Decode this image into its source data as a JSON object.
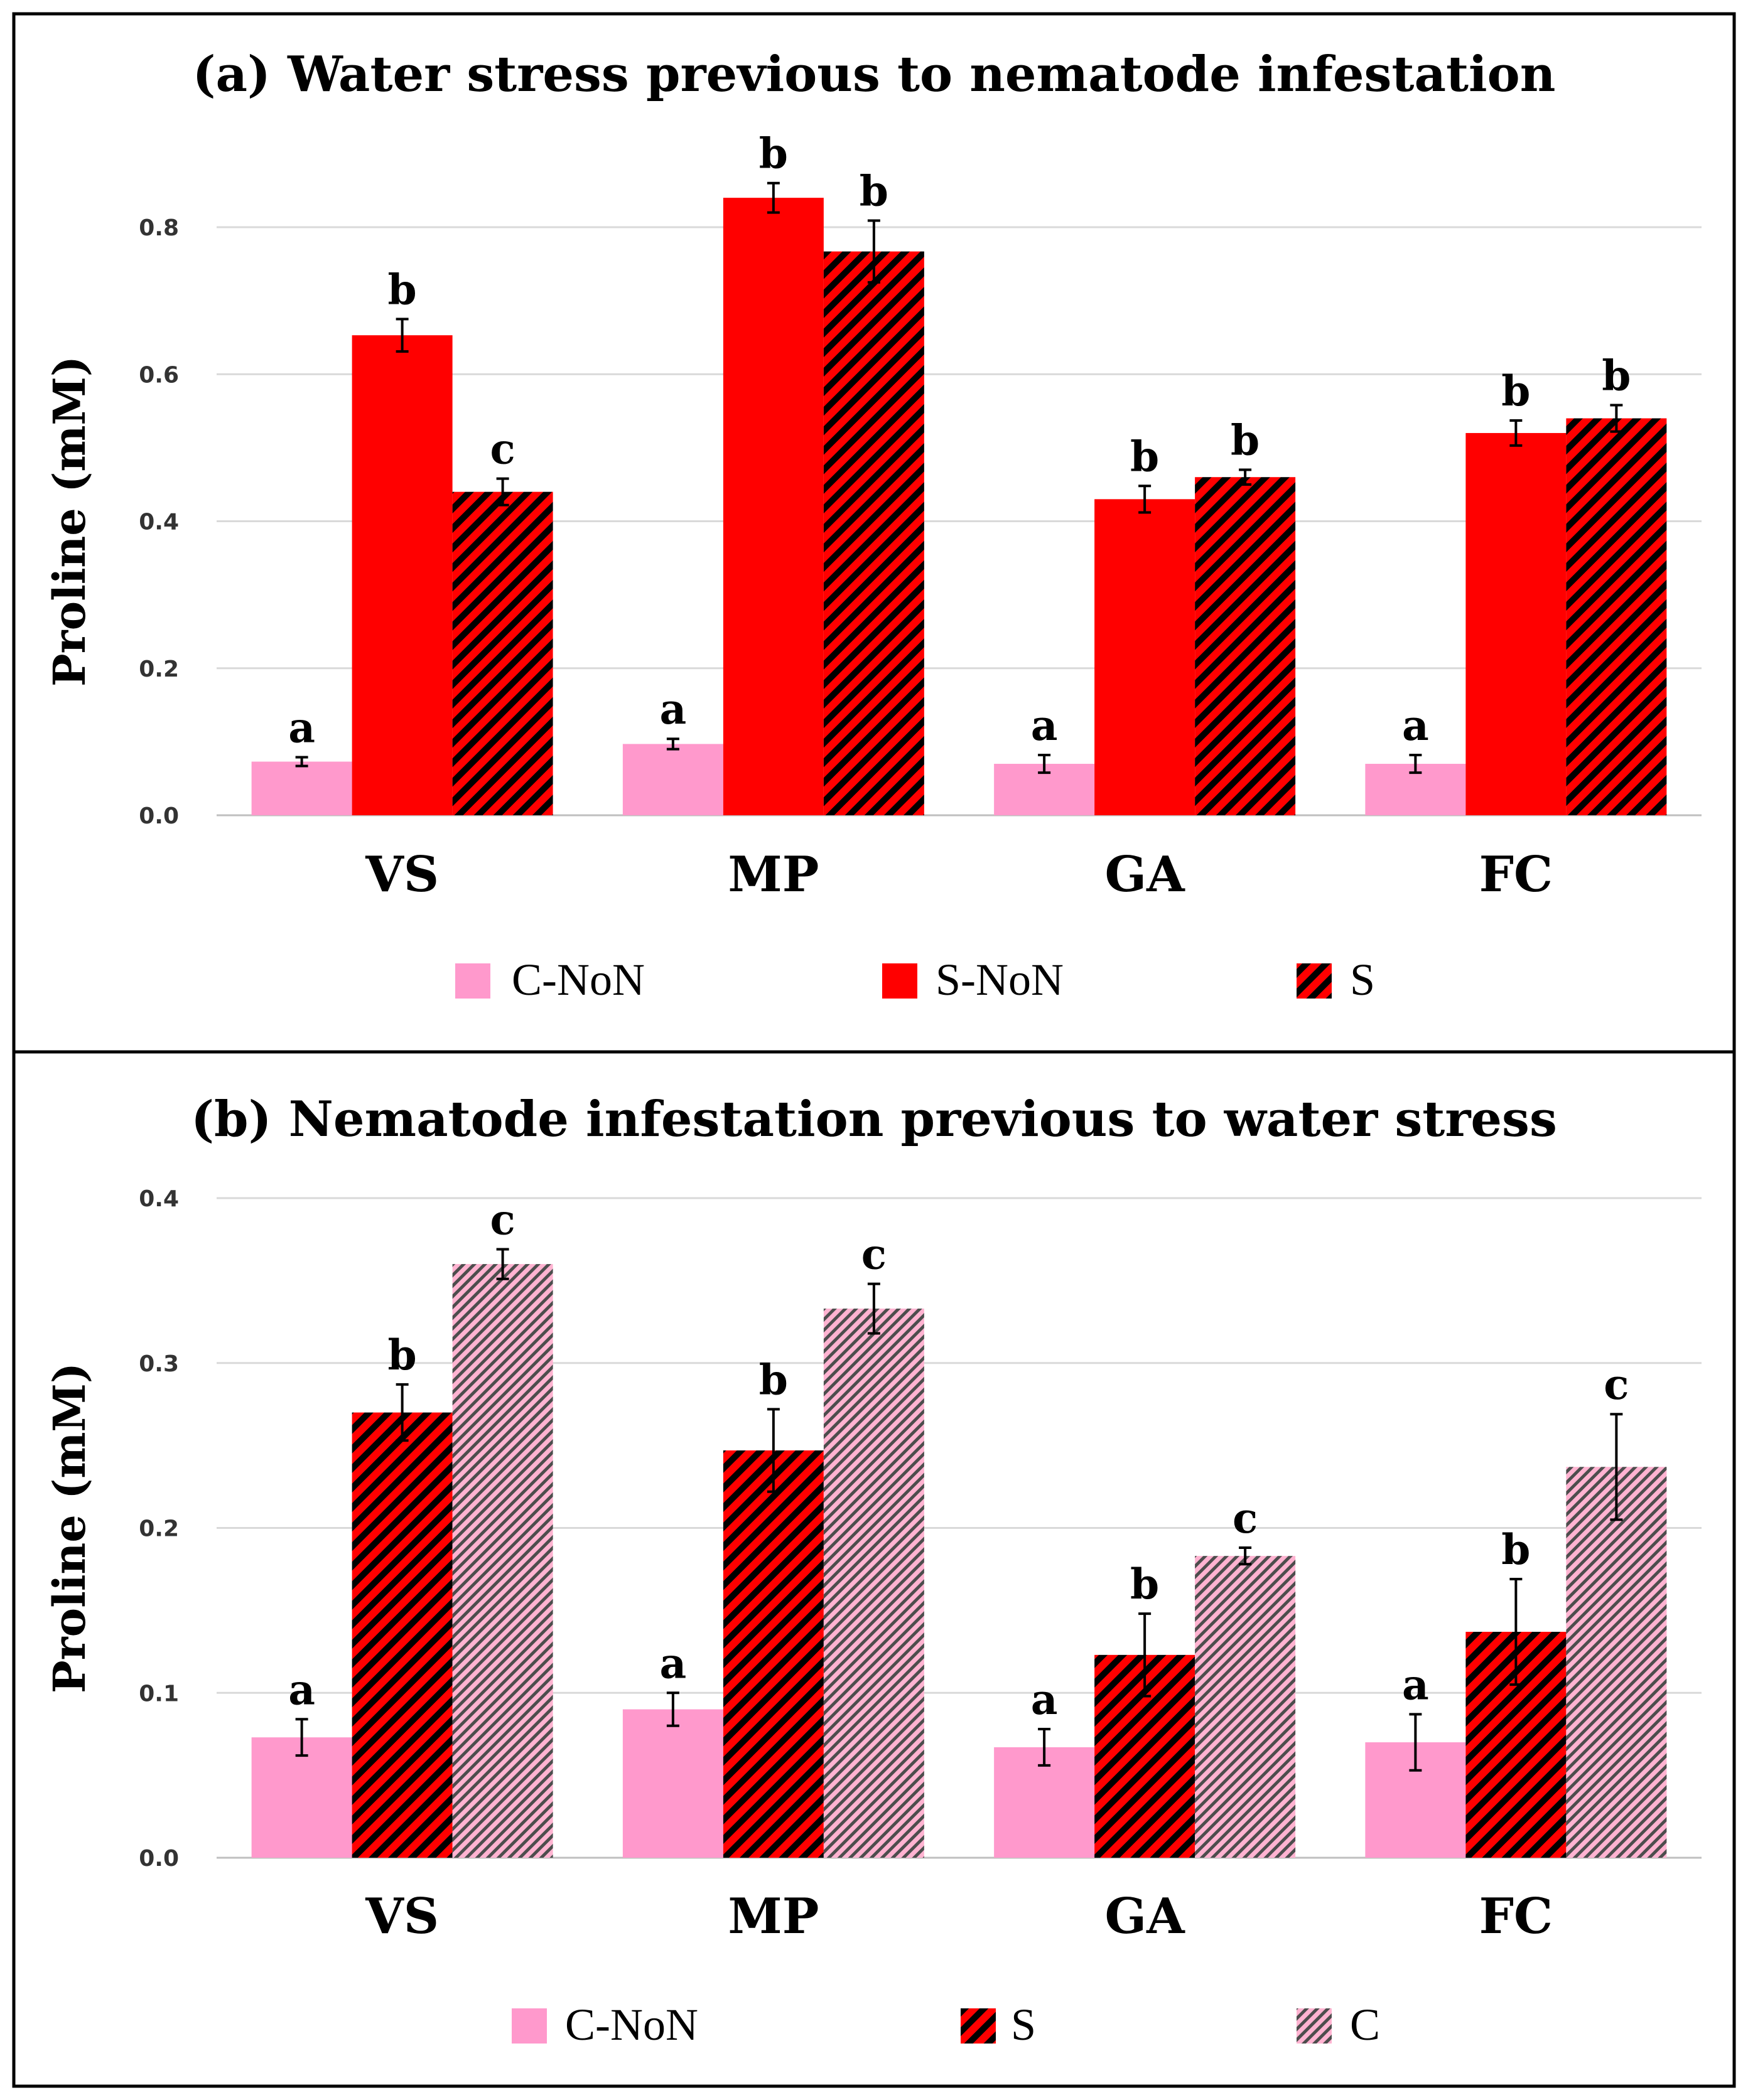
{
  "colors": {
    "c_non": "#ff99cc",
    "red": "#ff0000",
    "hatch_dark": "#000000",
    "pink_hatch_bg": "#ffb3d1",
    "pink_hatch_line": "#4d4d4d"
  },
  "chart_data": [
    {
      "id": "a",
      "type": "bar",
      "title": "(a) Water stress previous to nematode infestation",
      "ylabel": "Proline (mM)",
      "xlabel": "",
      "ylim": [
        0,
        0.8
      ],
      "yticks": [
        "0.0",
        "0.2",
        "0.4",
        "0.6",
        "0.8"
      ],
      "grid": true,
      "legend_position": "bottom",
      "categories": [
        "VS",
        "MP",
        "GA",
        "FC"
      ],
      "series": [
        {
          "name": "C-NoN",
          "fill": "solid-pink",
          "values": [
            0.073,
            0.097,
            0.07,
            0.07
          ],
          "errors": [
            0.006,
            0.007,
            0.012,
            0.012
          ],
          "labels": [
            "a",
            "a",
            "a",
            "a"
          ]
        },
        {
          "name": "S-NoN",
          "fill": "solid-red",
          "values": [
            0.653,
            0.84,
            0.43,
            0.52
          ],
          "errors": [
            0.022,
            0.02,
            0.018,
            0.017
          ],
          "labels": [
            "b",
            "b",
            "b",
            "b"
          ]
        },
        {
          "name": "S",
          "fill": "hatch-red",
          "values": [
            0.44,
            0.767,
            0.46,
            0.54
          ],
          "errors": [
            0.018,
            0.042,
            0.01,
            0.018
          ],
          "labels": [
            "c",
            "b",
            "b",
            "b"
          ]
        }
      ]
    },
    {
      "id": "b",
      "type": "bar",
      "title": "(b) Nematode infestation previous to water stress",
      "ylabel": "Proline (mM)",
      "xlabel": "",
      "ylim": [
        0,
        0.4
      ],
      "yticks": [
        "0.0",
        "0.1",
        "0.2",
        "0.3",
        "0.4"
      ],
      "grid": true,
      "legend_position": "bottom",
      "categories": [
        "VS",
        "MP",
        "GA",
        "FC"
      ],
      "series": [
        {
          "name": "C-NoN",
          "fill": "solid-pink",
          "values": [
            0.073,
            0.09,
            0.067,
            0.07
          ],
          "errors": [
            0.011,
            0.01,
            0.011,
            0.017
          ],
          "labels": [
            "a",
            "a",
            "a",
            "a"
          ]
        },
        {
          "name": "S",
          "fill": "hatch-red",
          "values": [
            0.27,
            0.247,
            0.123,
            0.137
          ],
          "errors": [
            0.017,
            0.025,
            0.025,
            0.032
          ],
          "labels": [
            "b",
            "b",
            "b",
            "b"
          ]
        },
        {
          "name": "C",
          "fill": "hatch-pink",
          "values": [
            0.36,
            0.333,
            0.183,
            0.237
          ],
          "errors": [
            0.009,
            0.015,
            0.005,
            0.032
          ],
          "labels": [
            "c",
            "c",
            "c",
            "c"
          ]
        }
      ]
    }
  ]
}
